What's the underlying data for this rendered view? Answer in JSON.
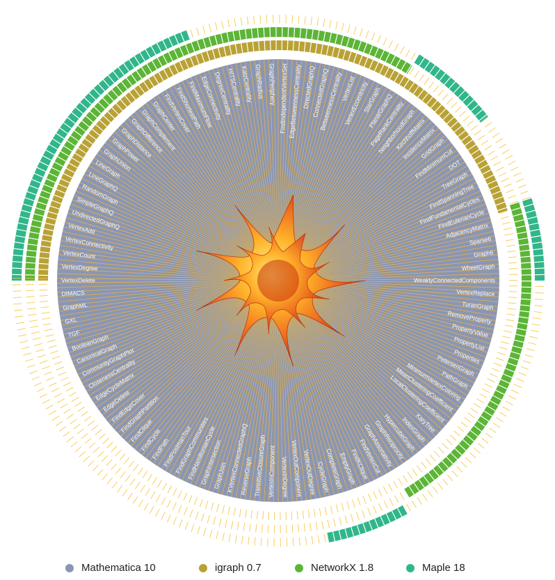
{
  "chart_data": {
    "type": "radial",
    "labels": [
      "VertexDelete",
      "VertexDegree",
      "VertexCount",
      "VertexConnectivity",
      "VertexAdd",
      "UndirectedGraphQ",
      "SimpleGraphQ",
      "RandomGraph",
      "LineGraphQ",
      "LineGraph",
      "GraphUnion",
      "GraphPower",
      "GraphDistance",
      "GraphDifference",
      "GraphComplement",
      "GraphCenter",
      "FindVertexCover",
      "FindShortestPath",
      "FindMaximumFlow",
      "EdgeConnectivity",
      "DegreeCentrality",
      "HITSCentrality",
      "KatzCentrality",
      "GraphRadius",
      "GraphPeriphery",
      "FindIndependentVertexSet",
      "EdgeBetweennessCentrality",
      "DirectedGraphQ",
      "ConnectedGraphQ",
      "BetweennessCentrality",
      "VertexList",
      "VertexEccentricity",
      "StarGraph",
      "PlanarGraphQ",
      "PageRankCentrality",
      "NeighborhoodGraph",
      "KirchhoffMatrix",
      "IncidenceMatrix",
      "GridGraph",
      "FindMinimumCut",
      "DOT",
      "TreeGraph",
      "FindSpanningTree",
      "FindFundamentalCycles",
      "FindEulerianCycle",
      "AdjacencyMatrix",
      "Sparse6",
      "Graph6",
      "WheelGraph",
      "WeaklyConnectedComponents",
      "VertexReplace",
      "TuranGraph",
      "RemoveProperty",
      "PropertyValue",
      "PropertyList",
      "Properties",
      "PetersenGraph",
      "PathGraph",
      "MinimumVertexColoring",
      "MeanClusteringCoefficient",
      "LocalClusteringCoefficient",
      "KaryTree",
      "IndexGraph",
      "HypercubeGraph",
      "GraphReciprocity",
      "GraphAssortativity",
      "FindVertexCut",
      "FindKClique",
      "EmptyGraph",
      "CompleteGraph",
      "CycleGraph",
      "VertexOutDegree",
      "VertexOutComponent",
      "VertexInDegree",
      "VertexInComponent",
      "TransitiveClosureGraph",
      "ReverseGraph",
      "KVertexConnectedGraphQ",
      "GraphJoin",
      "GraphIntersection",
      "FindHamiltonianCycle",
      "FindGraphCommunities",
      "FindPostmanTour",
      "FindPath",
      "FindCycle",
      "FindClique",
      "FindGraphPartition",
      "FindEdgeCover",
      "EdgeDelete",
      "EdgeCycleMatrix",
      "ClosenessCentrality",
      "CommunityGraphPlot",
      "CanonicalGraph",
      "BooleanGraph",
      "TGF",
      "GXL",
      "GraphML",
      "DIMACS"
    ],
    "series": [
      {
        "name": "Mathematica 10",
        "color": "#8a96b4"
      },
      {
        "name": "igraph 0.7",
        "color": "#b9a235",
        "arcs": [
          [
            -90,
            73
          ]
        ]
      },
      {
        "name": "NetworkX 1.8",
        "color": "#5cb536",
        "arcs": [
          [
            -90,
            32
          ],
          [
            72,
            149
          ]
        ]
      },
      {
        "name": "Maple 18",
        "color": "#31b68b",
        "arcs": [
          [
            -90,
            -20
          ],
          [
            32,
            52
          ],
          [
            72,
            90
          ],
          [
            151,
            169
          ]
        ]
      }
    ]
  }
}
